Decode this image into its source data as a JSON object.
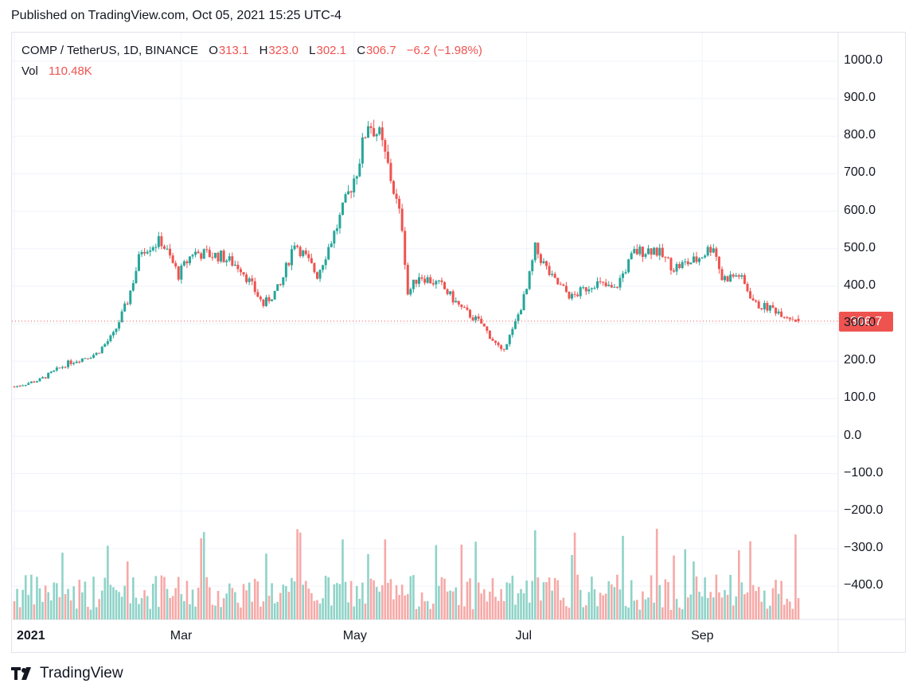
{
  "published": "Published on TradingView.com, Oct 05, 2021 15:25 UTC-4",
  "header": {
    "symbol": "COMP / TetherUS, 1D, BINANCE",
    "o_label": "O",
    "o_value": "313.1",
    "h_label": "H",
    "h_value": "323.0",
    "l_label": "L",
    "l_value": "302.1",
    "c_label": "C",
    "c_value": "306.7",
    "change": "−6.2 (−1.98%)"
  },
  "volume": {
    "label": "Vol",
    "value": "110.48K"
  },
  "last_price_tag": "306.7",
  "brand": "TradingView",
  "colors": {
    "up": "#26a69a",
    "down": "#ef5350",
    "vol_up": "#8fd3c8",
    "vol_down": "#f6a9a7",
    "grid": "#f0f3fa"
  },
  "chart_data": {
    "type": "candlestick",
    "title": "COMP / TetherUS, 1D, BINANCE",
    "ylim": [
      -500,
      1100
    ],
    "y_ticks": [
      "1000.0",
      "900.0",
      "800.0",
      "700.0",
      "600.0",
      "500.0",
      "400.0",
      "300.0",
      "200.0",
      "100.0",
      "0.0",
      "−100.0",
      "−200.0",
      "−300.0",
      "−400.0"
    ],
    "x_ticks": [
      "2021",
      "Mar",
      "May",
      "Jul",
      "Sep"
    ],
    "last_price": 306.7,
    "close_series": [
      [
        "2021-01-01",
        132
      ],
      [
        "2021-01-10",
        150
      ],
      [
        "2021-01-20",
        195
      ],
      [
        "2021-01-30",
        220
      ],
      [
        "2021-02-05",
        270
      ],
      [
        "2021-02-10",
        360
      ],
      [
        "2021-02-15",
        500
      ],
      [
        "2021-02-22",
        520
      ],
      [
        "2021-02-28",
        430
      ],
      [
        "2021-03-05",
        490
      ],
      [
        "2021-03-15",
        480
      ],
      [
        "2021-03-22",
        450
      ],
      [
        "2021-03-30",
        350
      ],
      [
        "2021-04-05",
        400
      ],
      [
        "2021-04-10",
        520
      ],
      [
        "2021-04-18",
        430
      ],
      [
        "2021-04-25",
        560
      ],
      [
        "2021-05-02",
        710
      ],
      [
        "2021-05-06",
        840
      ],
      [
        "2021-05-10",
        800
      ],
      [
        "2021-05-13",
        720
      ],
      [
        "2021-05-18",
        560
      ],
      [
        "2021-05-20",
        380
      ],
      [
        "2021-05-24",
        430
      ],
      [
        "2021-06-01",
        400
      ],
      [
        "2021-06-08",
        340
      ],
      [
        "2021-06-15",
        300
      ],
      [
        "2021-06-22",
        225
      ],
      [
        "2021-06-26",
        280
      ],
      [
        "2021-07-01",
        390
      ],
      [
        "2021-07-04",
        500
      ],
      [
        "2021-07-10",
        420
      ],
      [
        "2021-07-17",
        370
      ],
      [
        "2021-07-25",
        410
      ],
      [
        "2021-08-01",
        390
      ],
      [
        "2021-08-08",
        490
      ],
      [
        "2021-08-15",
        500
      ],
      [
        "2021-08-22",
        450
      ],
      [
        "2021-08-30",
        470
      ],
      [
        "2021-09-05",
        510
      ],
      [
        "2021-09-08",
        420
      ],
      [
        "2021-09-14",
        430
      ],
      [
        "2021-09-20",
        350
      ],
      [
        "2021-09-26",
        340
      ],
      [
        "2021-10-05",
        306.7
      ]
    ]
  }
}
